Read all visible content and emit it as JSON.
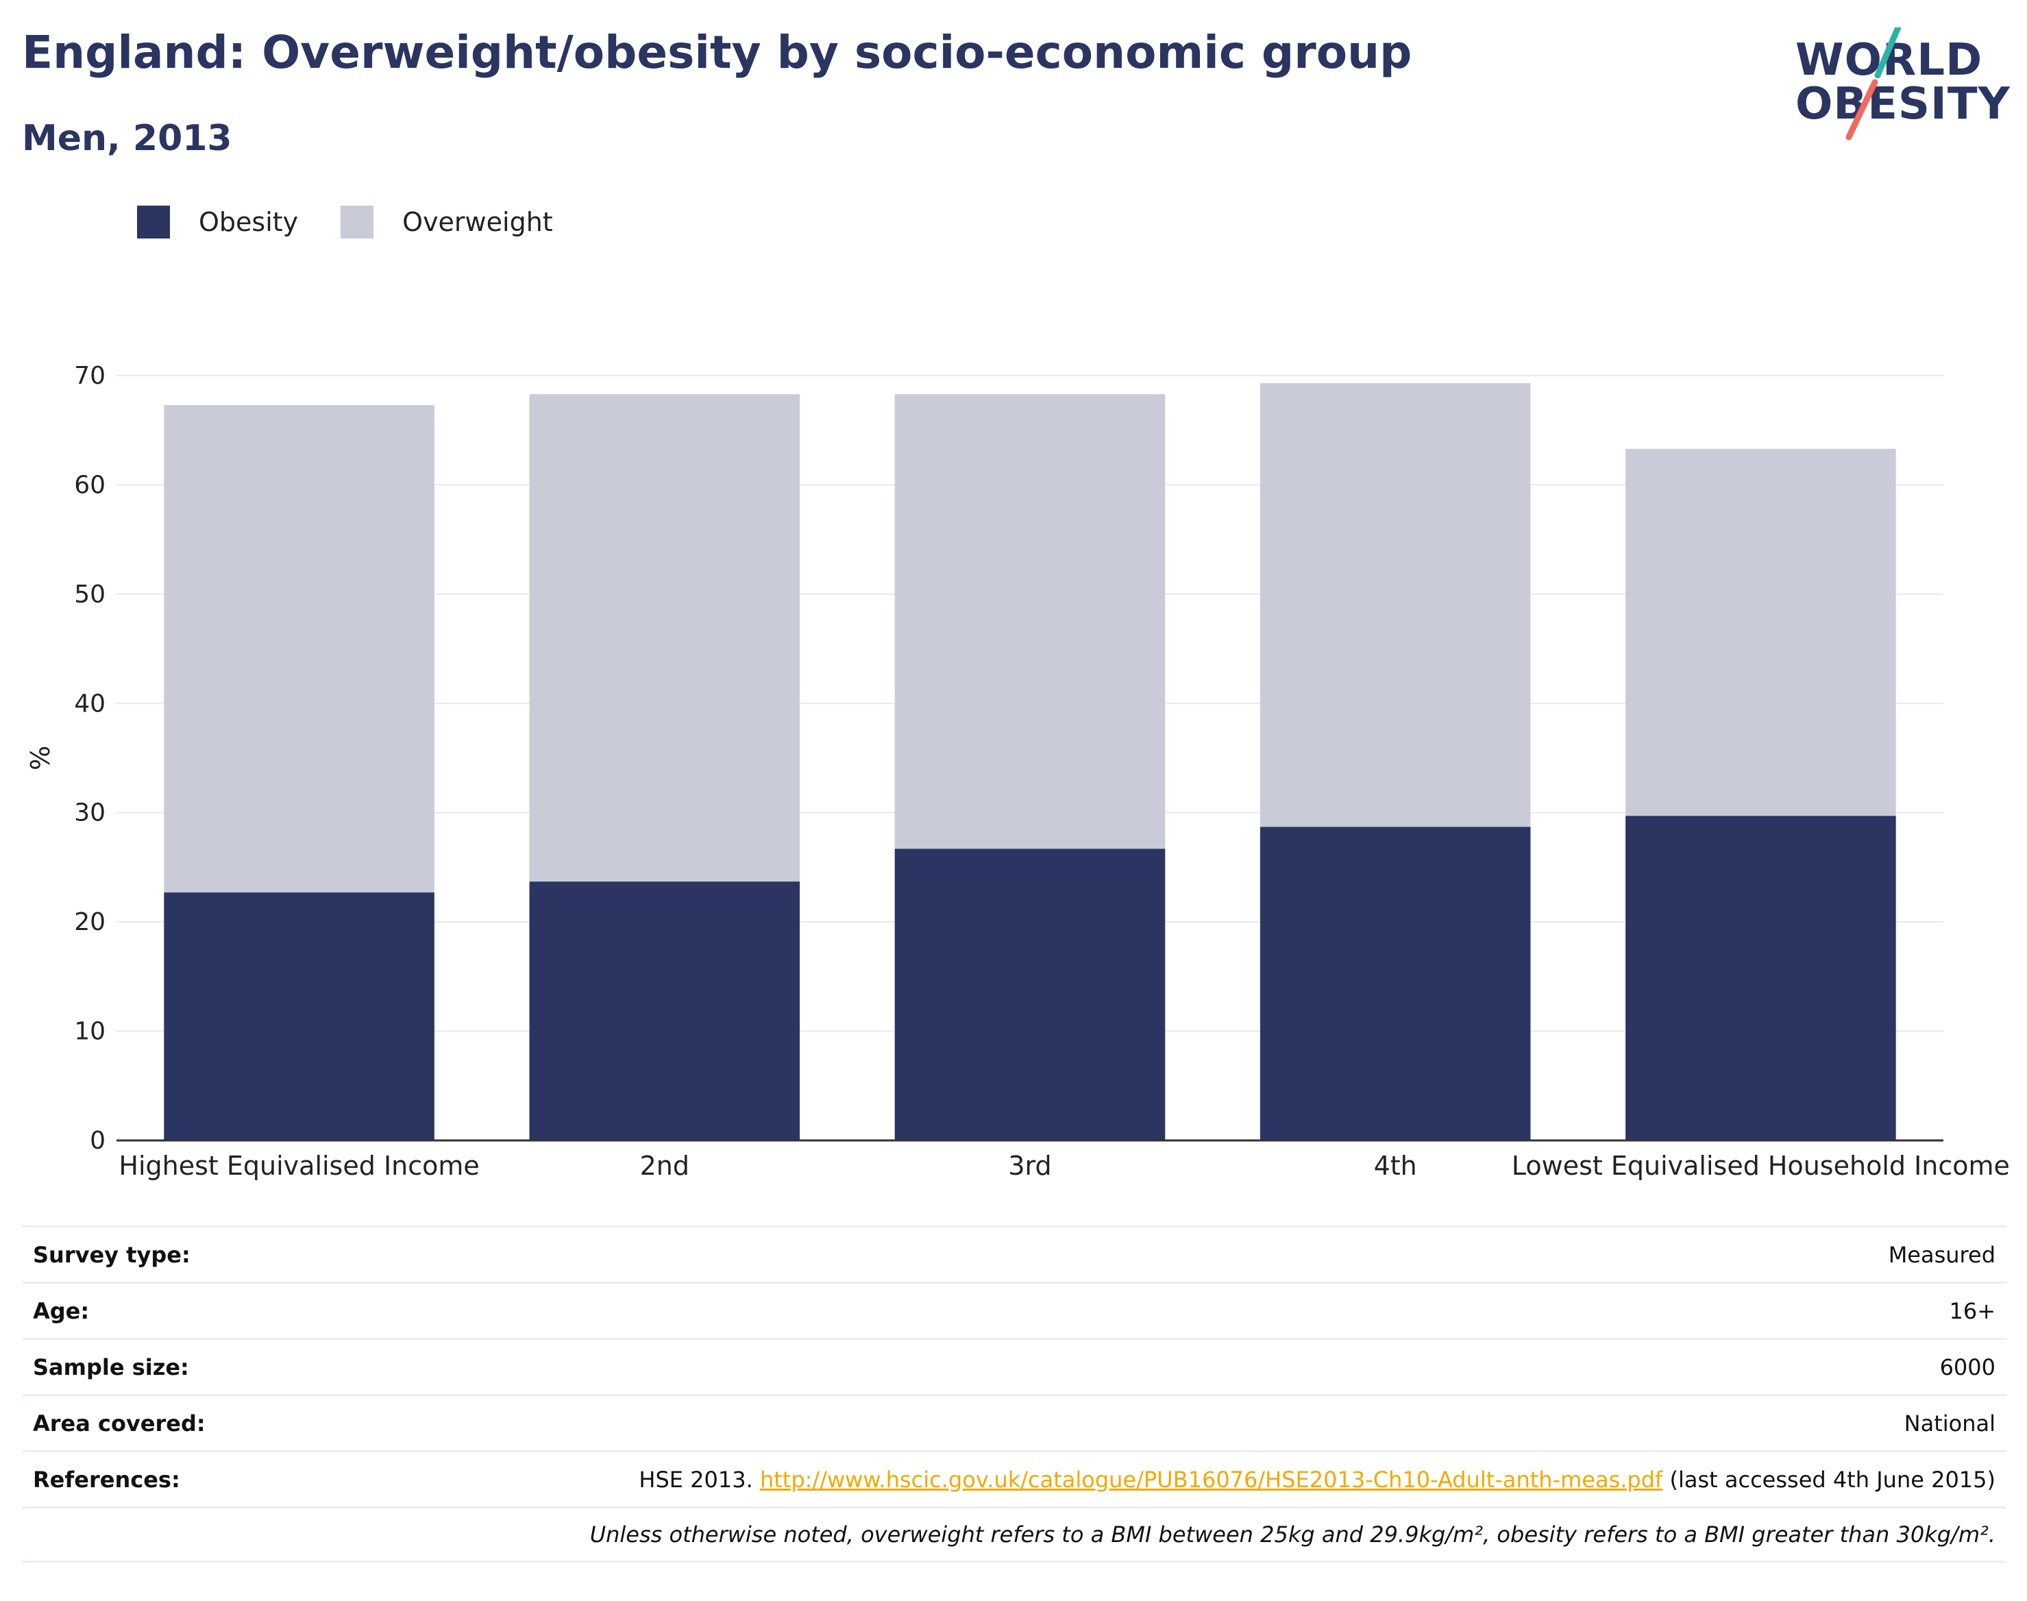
{
  "header": {
    "title": "England: Overweight/obesity by socio-economic group",
    "subtitle": "Men, 2013"
  },
  "logo": {
    "line1": "WORLD",
    "line2": "OBESITY",
    "accent_teal": "#2bb3a8",
    "accent_coral": "#f06b5e"
  },
  "colors": {
    "obesity": "#2a3561",
    "overweight": "#c9ccd8",
    "text_dark": "#2a3561",
    "link": "#f2a900"
  },
  "legend": {
    "items": [
      {
        "label": "Obesity",
        "color": "#2a3561"
      },
      {
        "label": "Overweight",
        "color": "#c9ccd8"
      }
    ]
  },
  "chart_data": {
    "type": "bar",
    "stacked": true,
    "categories": [
      "Highest Equivalised Income",
      "2nd",
      "3rd",
      "4th",
      "Lowest Equivalised Household Income"
    ],
    "series": [
      {
        "name": "Obesity",
        "values": [
          22.7,
          23.7,
          26.7,
          28.7,
          29.7
        ],
        "color": "#2a3561"
      },
      {
        "name": "Overweight",
        "values": [
          44.6,
          44.6,
          41.6,
          40.6,
          33.6
        ],
        "color": "#c9ccd8"
      }
    ],
    "ylabel": "%",
    "ylim": [
      0,
      70
    ],
    "yticks": [
      0,
      10,
      20,
      30,
      40,
      50,
      60,
      70
    ],
    "grid": true,
    "legend_position": "top-left"
  },
  "meta": {
    "survey_type": {
      "label": "Survey type:",
      "value": "Measured"
    },
    "age": {
      "label": "Age:",
      "value": "16+"
    },
    "sample_size": {
      "label": "Sample size:",
      "value": "6000"
    },
    "area": {
      "label": "Area covered:",
      "value": "National"
    },
    "references": {
      "label": "References:",
      "prefix": "HSE 2013.",
      "link": "http://www.hscic.gov.uk/catalogue/PUB16076/HSE2013-Ch10-Adult-anth-meas.pdf",
      "suffix": "(last accessed 4th June 2015)"
    },
    "note": "Unless otherwise noted, overweight refers to a BMI between 25kg and 29.9kg/m², obesity refers to a BMI greater than 30kg/m²."
  }
}
